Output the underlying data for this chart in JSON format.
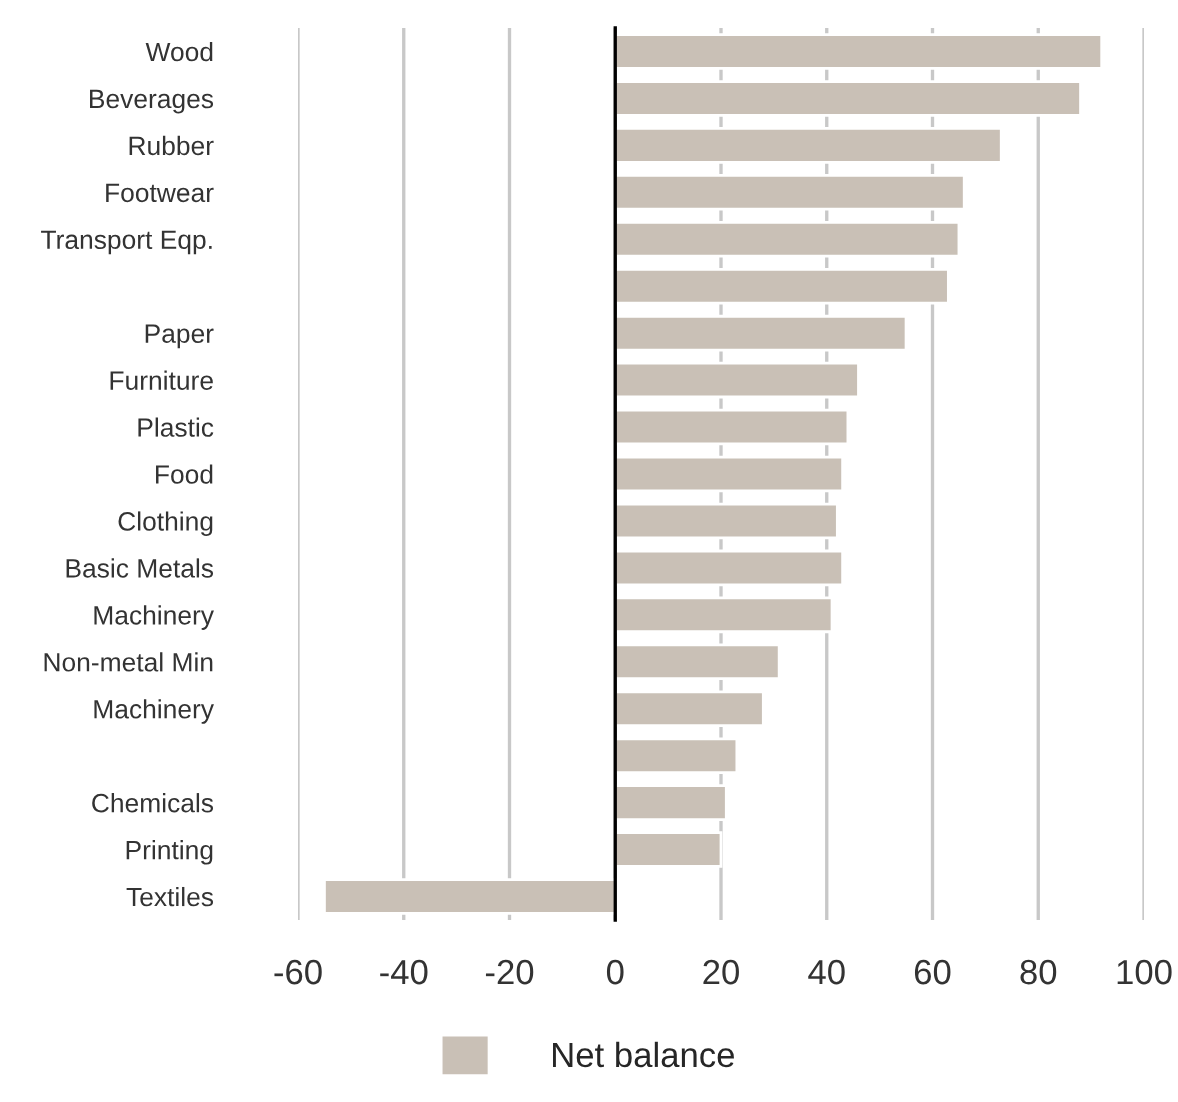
{
  "chart_data": {
    "type": "bar",
    "orientation": "horizontal",
    "categories": [
      "Wood",
      "Beverages",
      "Rubber",
      "Footwear",
      "Transport Eqp.",
      null,
      "Paper",
      "Furniture",
      "Plastic",
      "Food",
      "Clothing",
      "Basic Metals",
      "Machinery",
      "Non-metal Min",
      "Machinery",
      null,
      "Chemicals",
      "Printing",
      "Textiles"
    ],
    "series": [
      {
        "name": "Net balance",
        "color": "#c9c0b6",
        "values": [
          92,
          88,
          73,
          66,
          65,
          63,
          55,
          46,
          44,
          43,
          42,
          43,
          41,
          31,
          28,
          23,
          21,
          20,
          -55
        ]
      }
    ],
    "xlim": [
      -60,
      100
    ],
    "xticks": [
      -60,
      -40,
      -20,
      0,
      20,
      40,
      60,
      80,
      100
    ],
    "grid": "x",
    "legend": "bottom"
  }
}
